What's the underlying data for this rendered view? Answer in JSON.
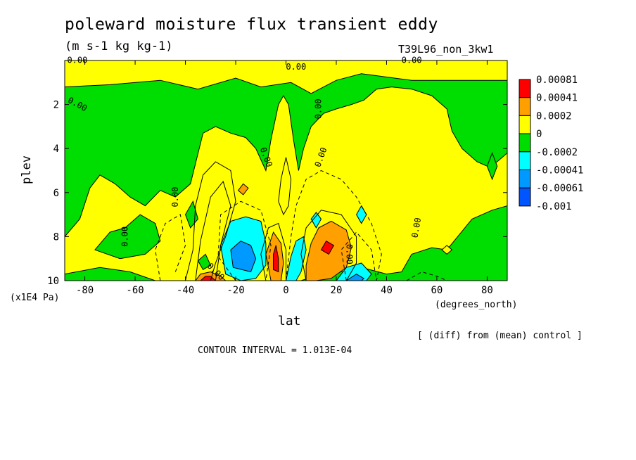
{
  "chart_data": {
    "type": "heatmap",
    "title": "poleward moisture flux transient eddy",
    "units": "(m s-1 kg kg-1)",
    "run_label": "T39L96_non_3kw1",
    "xlabel": "lat",
    "xunit": "(degrees_north)",
    "ylabel": "plev",
    "yunit": "(x1E4 Pa)",
    "xlim": [
      -88,
      88
    ],
    "ylim": [
      10,
      0
    ],
    "x_ticks": [
      -80,
      -60,
      -40,
      -20,
      0,
      20,
      40,
      60,
      80
    ],
    "y_ticks": [
      2,
      4,
      6,
      8,
      10
    ],
    "x_tick_labels": [
      "-80",
      "-60",
      "-40",
      "-20",
      "0",
      "20",
      "40",
      "60",
      "80"
    ],
    "y_tick_labels": [
      "2",
      "4",
      "6",
      "8",
      "10"
    ],
    "note": "[ (diff) from (mean) control ]",
    "contour_interval": "CONTOUR INTERVAL = 1.013E-04",
    "contour_labels": [
      "0.00",
      "0.00",
      "0.00",
      "0.00",
      "0.00",
      "0.00",
      "0.00",
      "0.00",
      "0.00",
      "0.00",
      "0.00"
    ],
    "legend": {
      "labels": [
        "0.00081",
        "0.00041",
        "0.0002",
        "0",
        "-0.0002",
        "-0.00041",
        "-0.00061",
        "-0.001"
      ],
      "colors": [
        "#ff0000",
        "#ff9f00",
        "#ffff00",
        "#00dd00",
        "#00ffff",
        "#0099ff",
        "#0055ff"
      ]
    },
    "level_colors": {
      "neg3": "#0055ff",
      "neg2": "#0099ff",
      "neg1": "#00ffff",
      "neg0": "#00dd00",
      "pos0": "#ffff00",
      "pos1": "#ff9f00",
      "pos2": "#ff0000"
    }
  }
}
